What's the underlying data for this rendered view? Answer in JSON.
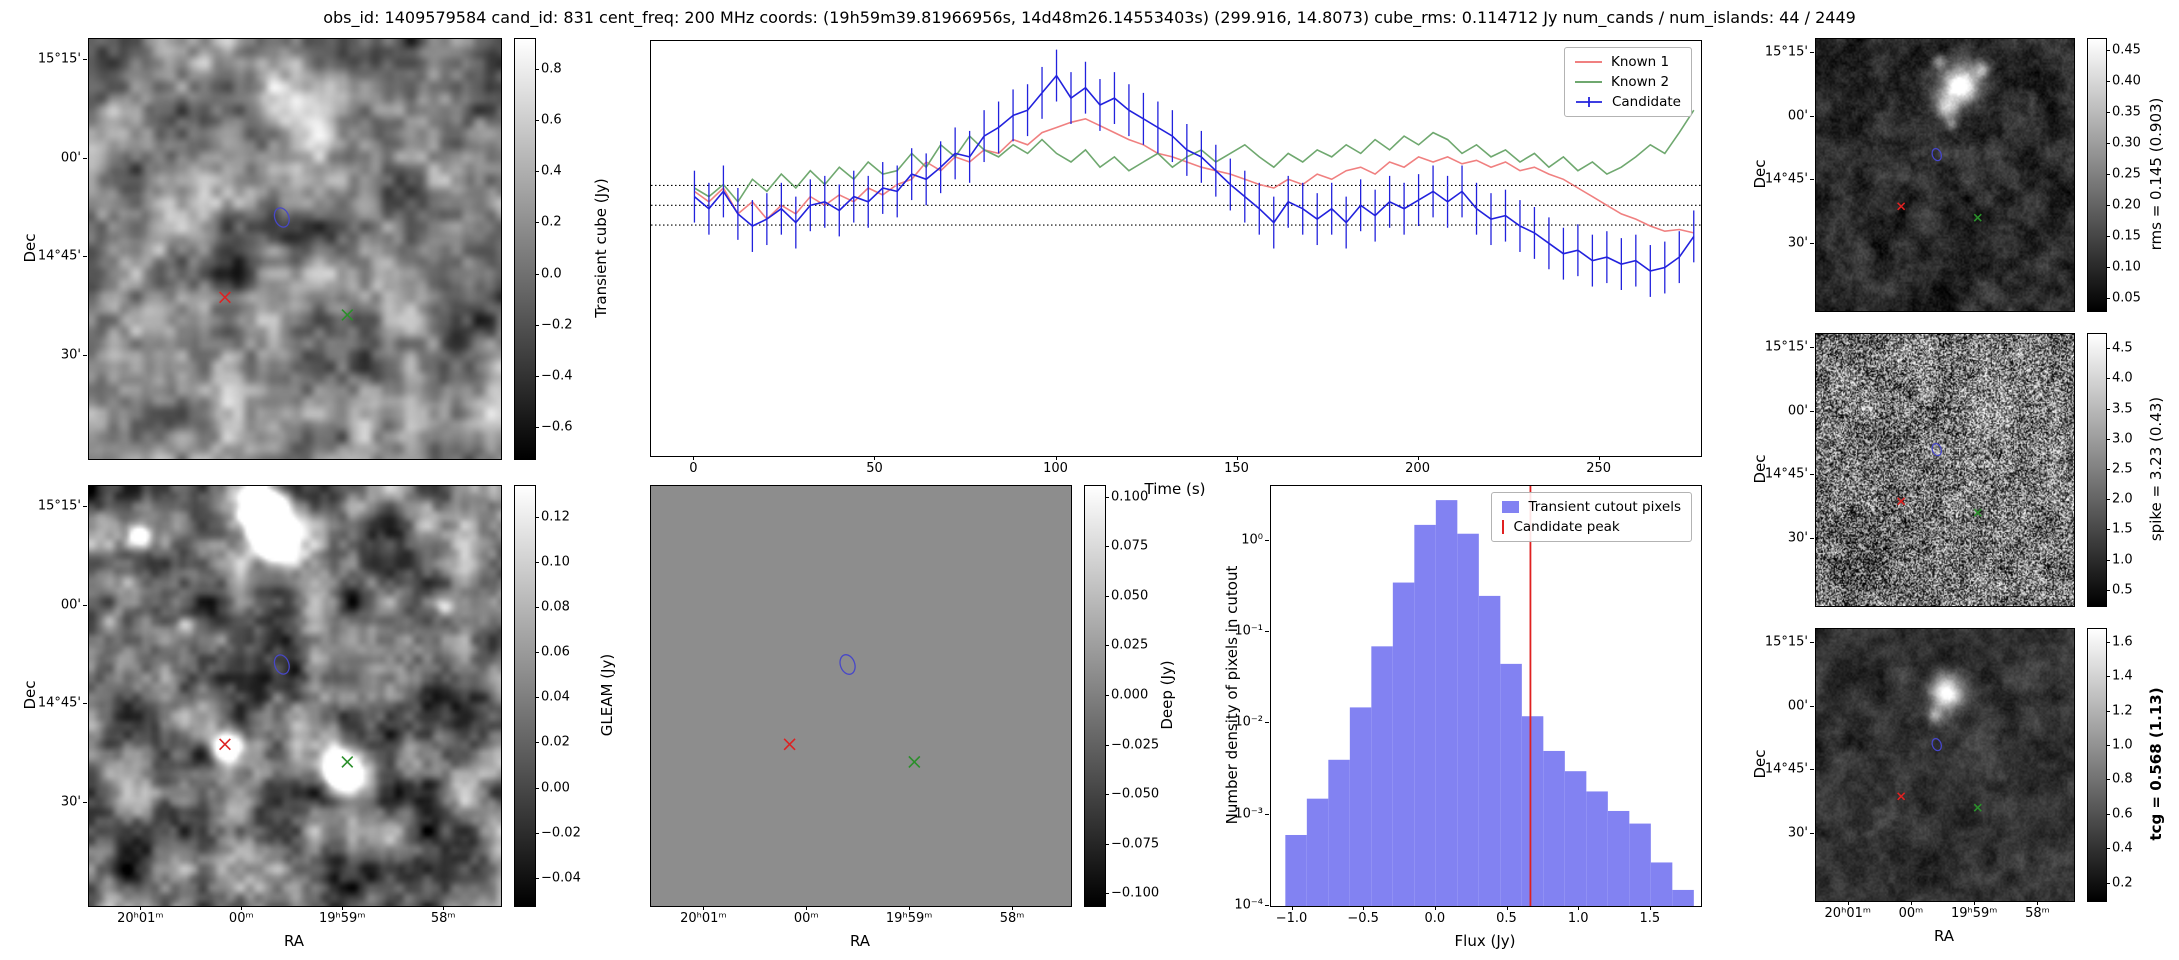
{
  "title": "obs_id: 1409579584 cand_id: 831 cent_freq: 200 MHz coords: (19h59m39.81966956s, 14d48m26.14553403s) (299.916, 14.8073) cube_rms: 0.114712 Jy num_cands / num_islands: 44 / 2449",
  "colors": {
    "known1": "#f08080",
    "known2": "#6fa86f",
    "candidate": "#2222dd",
    "hist_fill": "#8282f2",
    "candidate_peak_line": "#e02020",
    "contour": "#4747c8",
    "red_marker": "#dd2222",
    "green_marker": "#2a8f2a",
    "frame": "#000000"
  },
  "sky": {
    "dec_label": "Dec",
    "ra_label": "RA",
    "dec_ticks": {
      "labels": [
        "15°15'",
        "00'",
        "14°45'",
        "30'"
      ],
      "fracs": [
        0.05,
        0.285,
        0.52,
        0.755
      ]
    },
    "ra_ticks": {
      "labels": [
        "20ʰ01ᵐ",
        "00ᵐ",
        "19ʰ59ᵐ",
        "58ᵐ"
      ],
      "fracs": [
        0.127,
        0.372,
        0.617,
        0.862
      ]
    }
  },
  "markers": {
    "red_x": [
      0.33,
      0.615
    ],
    "green_x": [
      0.627,
      0.657
    ],
    "contour": [
      0.468,
      0.425
    ]
  },
  "panels": {
    "transient": {
      "colorbar_label": "Transient cube (Jy)",
      "vmin": -0.72,
      "vmax": 0.92,
      "cbar_tick_vals": [
        0.8,
        0.6,
        0.4,
        0.2,
        0.0,
        -0.2,
        -0.4,
        -0.6
      ],
      "cbar_tick_labels": [
        "0.8",
        "0.6",
        "0.4",
        "0.2",
        "0.0",
        "−0.2",
        "−0.4",
        "−0.6"
      ]
    },
    "gleam": {
      "colorbar_label": "GLEAM (Jy)",
      "vmin": -0.052,
      "vmax": 0.134,
      "cbar_tick_vals": [
        0.12,
        0.1,
        0.08,
        0.06,
        0.04,
        0.02,
        0.0,
        -0.02,
        -0.04
      ],
      "cbar_tick_labels": [
        "0.12",
        "0.10",
        "0.08",
        "0.06",
        "0.04",
        "0.02",
        "0.00",
        "−0.02",
        "−0.04"
      ]
    },
    "deep": {
      "colorbar_label": "Deep (Jy)",
      "vmin": -0.106,
      "vmax": 0.106,
      "cbar_tick_vals": [
        0.1,
        0.075,
        0.05,
        0.025,
        0.0,
        -0.025,
        -0.05,
        -0.075,
        -0.1
      ],
      "cbar_tick_labels": [
        "0.100",
        "0.075",
        "0.050",
        "0.025",
        "0.000",
        "−0.025",
        "−0.050",
        "−0.075",
        "−0.100"
      ]
    },
    "rms": {
      "colorbar_label": "rms = 0.145 (0.903)",
      "vmin": 0.03,
      "vmax": 0.47,
      "cbar_tick_vals": [
        0.45,
        0.4,
        0.35,
        0.3,
        0.25,
        0.2,
        0.15,
        0.1,
        0.05
      ],
      "cbar_tick_labels": [
        "0.45",
        "0.40",
        "0.35",
        "0.30",
        "0.25",
        "0.20",
        "0.15",
        "0.10",
        "0.05"
      ]
    },
    "spike": {
      "colorbar_label": "spike = 3.23 (0.43)",
      "vmin": 0.25,
      "vmax": 4.75,
      "cbar_tick_vals": [
        4.5,
        4.0,
        3.5,
        3.0,
        2.5,
        2.0,
        1.5,
        1.0,
        0.5
      ],
      "cbar_tick_labels": [
        "4.5",
        "4.0",
        "3.5",
        "3.0",
        "2.5",
        "2.0",
        "1.5",
        "1.0",
        "0.5"
      ]
    },
    "tcg": {
      "colorbar_label": "tcg = 0.568 (1.13)",
      "vmin": 0.1,
      "vmax": 1.68,
      "cbar_tick_vals": [
        1.6,
        1.4,
        1.2,
        1.0,
        0.8,
        0.6,
        0.4,
        0.2
      ],
      "cbar_tick_labels": [
        "1.6",
        "1.4",
        "1.2",
        "1.0",
        "0.8",
        "0.6",
        "0.4",
        "0.2"
      ]
    }
  },
  "chart_data": [
    {
      "type": "line",
      "title": "",
      "xlabel": "Time (s)",
      "ylabel": "",
      "xlim": [
        -12,
        278
      ],
      "ylim": [
        -1.45,
        0.95
      ],
      "xticks": [
        0,
        50,
        100,
        150,
        200,
        250
      ],
      "xtick_labels": [
        "0",
        "50",
        "100",
        "150",
        "200",
        "250"
      ],
      "hlines": [
        0.114712,
        0.0,
        -0.114712
      ],
      "x_start": 0,
      "x_step": 4,
      "legend_position": "top-right",
      "series": [
        {
          "name": "Known 1",
          "color_key": "known1",
          "values": [
            0.08,
            0.02,
            0.1,
            -0.05,
            0.02,
            -0.08,
            0.0,
            -0.05,
            0.05,
            0.0,
            0.06,
            0.02,
            0.1,
            0.06,
            0.12,
            0.15,
            0.25,
            0.2,
            0.28,
            0.25,
            0.32,
            0.3,
            0.38,
            0.35,
            0.42,
            0.45,
            0.48,
            0.5,
            0.46,
            0.42,
            0.38,
            0.35,
            0.3,
            0.28,
            0.25,
            0.22,
            0.2,
            0.18,
            0.15,
            0.12,
            0.1,
            0.15,
            0.12,
            0.18,
            0.15,
            0.2,
            0.22,
            0.18,
            0.25,
            0.22,
            0.28,
            0.25,
            0.28,
            0.24,
            0.26,
            0.22,
            0.25,
            0.2,
            0.22,
            0.18,
            0.15,
            0.1,
            0.05,
            0.0,
            -0.05,
            -0.08,
            -0.12,
            -0.15,
            -0.14,
            -0.16
          ]
        },
        {
          "name": "Known 2",
          "color_key": "known2",
          "values": [
            0.1,
            0.05,
            0.12,
            0.02,
            0.15,
            0.08,
            0.18,
            0.1,
            0.2,
            0.12,
            0.22,
            0.15,
            0.25,
            0.18,
            0.2,
            0.3,
            0.22,
            0.35,
            0.28,
            0.4,
            0.32,
            0.28,
            0.35,
            0.3,
            0.38,
            0.3,
            0.25,
            0.32,
            0.22,
            0.28,
            0.2,
            0.25,
            0.3,
            0.22,
            0.28,
            0.32,
            0.25,
            0.3,
            0.35,
            0.28,
            0.22,
            0.3,
            0.25,
            0.32,
            0.28,
            0.35,
            0.3,
            0.38,
            0.32,
            0.4,
            0.35,
            0.42,
            0.38,
            0.3,
            0.35,
            0.28,
            0.32,
            0.25,
            0.3,
            0.22,
            0.28,
            0.2,
            0.25,
            0.18,
            0.22,
            0.28,
            0.35,
            0.3,
            0.42,
            0.55
          ]
        },
        {
          "name": "Candidate",
          "color_key": "candidate",
          "yerr": 0.15,
          "values": [
            0.05,
            -0.02,
            0.08,
            -0.05,
            -0.12,
            -0.08,
            -0.02,
            -0.1,
            0.0,
            0.02,
            -0.03,
            0.05,
            0.02,
            0.1,
            0.08,
            0.18,
            0.15,
            0.22,
            0.3,
            0.28,
            0.4,
            0.45,
            0.52,
            0.55,
            0.65,
            0.75,
            0.62,
            0.68,
            0.58,
            0.62,
            0.55,
            0.5,
            0.45,
            0.4,
            0.32,
            0.28,
            0.2,
            0.12,
            0.05,
            -0.02,
            -0.1,
            0.02,
            -0.02,
            -0.08,
            -0.02,
            -0.1,
            0.0,
            -0.06,
            0.02,
            -0.02,
            0.03,
            0.08,
            0.02,
            0.08,
            -0.02,
            -0.08,
            -0.06,
            -0.12,
            -0.16,
            -0.22,
            -0.28,
            -0.26,
            -0.32,
            -0.3,
            -0.34,
            -0.32,
            -0.38,
            -0.36,
            -0.3,
            -0.18
          ]
        }
      ]
    },
    {
      "type": "bar",
      "title": "",
      "xlabel": "Flux (Jy)",
      "ylabel": "Number density of pixels in cutout",
      "xlim": [
        -1.15,
        1.85
      ],
      "ylog": true,
      "ylim": [
        0.0001,
        4
      ],
      "xticks": [
        -1.0,
        -0.5,
        0.0,
        0.5,
        1.0,
        1.5
      ],
      "xtick_labels": [
        "−1.0",
        "−0.5",
        "0.0",
        "0.5",
        "1.0",
        "1.5"
      ],
      "ytick_vals": [
        1,
        0.1,
        0.01,
        0.001,
        0.0001
      ],
      "ytick_labels": [
        "10⁰",
        "10⁻¹",
        "10⁻²",
        "10⁻³",
        "10⁻⁴"
      ],
      "bin_start": -1.05,
      "bin_width": 0.15,
      "densities": [
        0.0006,
        0.0015,
        0.004,
        0.015,
        0.07,
        0.35,
        1.5,
        2.8,
        1.2,
        0.25,
        0.045,
        0.012,
        0.005,
        0.003,
        0.0018,
        0.0011,
        0.0008,
        0.0003,
        0.00015
      ],
      "vline": 0.66,
      "legend": [
        "Transient cutout pixels",
        "Candidate peak"
      ],
      "legend_position": "top-right"
    }
  ]
}
